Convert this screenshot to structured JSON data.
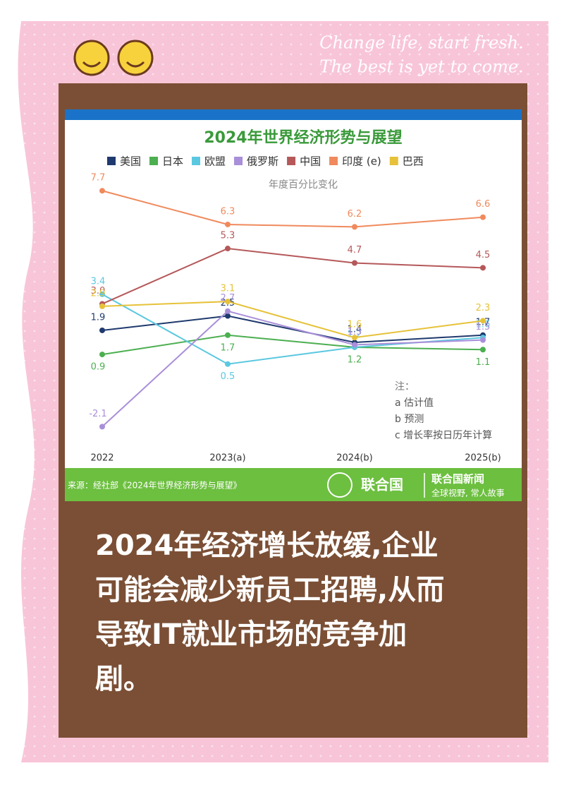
{
  "poster": {
    "slogan": [
      "Change life, start fresh.",
      "The best is yet to come."
    ],
    "caption": [
      "2024年经济增长放缓,企业",
      "可能会减少新员工招聘,从而",
      "导致IT就业市场的竞争加",
      "剧。"
    ]
  },
  "chart_data": {
    "type": "line",
    "title": "2024年世界经济形势与展望",
    "subtitle": "年度百分比变化",
    "categories": [
      "2022",
      "2023(a)",
      "2024(b)",
      "2025(b)"
    ],
    "ylim": [
      -2.5,
      8
    ],
    "series": [
      {
        "name": "美国",
        "color": "#1f3a6e",
        "values": [
          1.9,
          2.5,
          1.4,
          1.7
        ]
      },
      {
        "name": "日本",
        "color": "#4caf50",
        "values": [
          0.9,
          1.7,
          1.2,
          1.1
        ]
      },
      {
        "name": "欧盟",
        "color": "#5bc8e0",
        "values": [
          3.4,
          0.5,
          1.2,
          1.6
        ]
      },
      {
        "name": "俄罗斯",
        "color": "#a98fd9",
        "values": [
          -2.1,
          2.7,
          1.3,
          1.5
        ]
      },
      {
        "name": "中国",
        "color": "#b5585a",
        "values": [
          3.0,
          5.3,
          4.7,
          4.5
        ],
        "value_labels": [
          "3.0",
          "5.3",
          "4.7",
          "4.5"
        ]
      },
      {
        "name": "印度 (e)",
        "color": "#f08a5d",
        "values": [
          7.7,
          6.3,
          6.2,
          6.6
        ]
      },
      {
        "name": "巴西",
        "color": "#e6c23a",
        "values": [
          2.9,
          3.1,
          1.6,
          2.3
        ]
      }
    ],
    "notes": [
      "注：",
      "a 估计值",
      "b 预测",
      "c 增长率按日历年计算"
    ],
    "source": "来源：经社部《2024年世界经济形势与展望》",
    "logo": "联合国",
    "brand": "联合国新闻",
    "brand_tagline": "全球视野, 常人故事"
  }
}
